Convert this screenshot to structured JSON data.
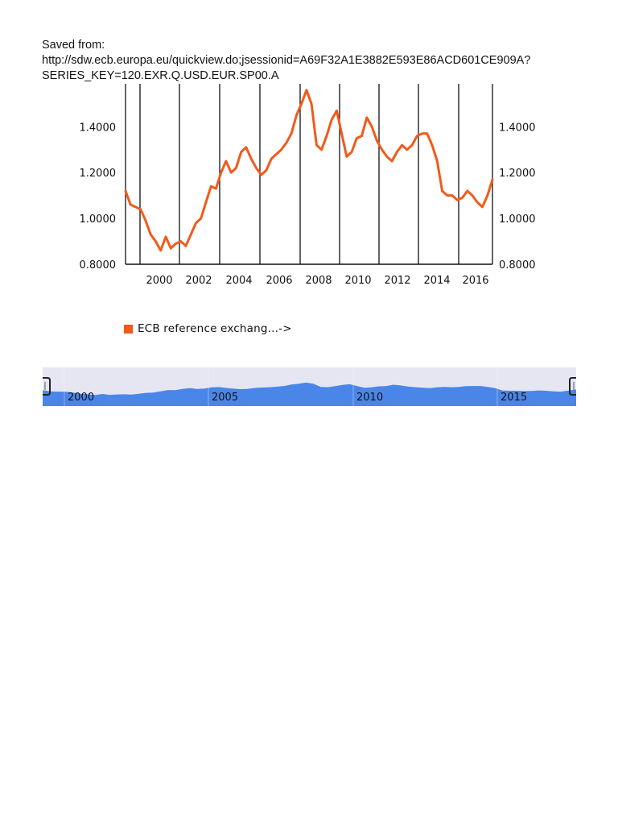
{
  "header": {
    "line1": "Saved from:",
    "line2": "http://sdw.ecb.europa.eu/quickview.do;jsessionid=A69F32A1E3882E593E86ACD601CE909A?",
    "line3": "SERIES_KEY=120.EXR.Q.USD.EUR.SP00.A"
  },
  "legend": {
    "label": "ECB reference exchang...->",
    "color": "#f25a1a"
  },
  "navigator": {
    "labels": [
      "2000",
      "2005",
      "2010",
      "2015"
    ],
    "fill_color": "#4a86e8",
    "background_color": "#e6e6f3"
  },
  "chart_data": {
    "type": "line",
    "title": "",
    "xlabel": "",
    "ylabel": "",
    "ylim": [
      0.8,
      1.58
    ],
    "yticks": [
      "0.8000",
      "1.0000",
      "1.2000",
      "1.4000"
    ],
    "yticks_right": [
      "0.8000",
      "1.0000",
      "1.2000",
      "1.4000"
    ],
    "xticks": [
      "2000",
      "2002",
      "2004",
      "2006",
      "2008",
      "2010",
      "2012",
      "2014",
      "2016"
    ],
    "grid": "vertical lines at year boundaries",
    "legend_position": "bottom",
    "series": [
      {
        "name": "ECB reference exchang...->",
        "color": "#f25a1a",
        "x": [
          "1999Q1",
          "1999Q2",
          "1999Q3",
          "1999Q4",
          "2000Q1",
          "2000Q2",
          "2000Q3",
          "2000Q4",
          "2001Q1",
          "2001Q2",
          "2001Q3",
          "2001Q4",
          "2002Q1",
          "2002Q2",
          "2002Q3",
          "2002Q4",
          "2003Q1",
          "2003Q2",
          "2003Q3",
          "2003Q4",
          "2004Q1",
          "2004Q2",
          "2004Q3",
          "2004Q4",
          "2005Q1",
          "2005Q2",
          "2005Q3",
          "2005Q4",
          "2006Q1",
          "2006Q2",
          "2006Q3",
          "2006Q4",
          "2007Q1",
          "2007Q2",
          "2007Q3",
          "2007Q4",
          "2008Q1",
          "2008Q2",
          "2008Q3",
          "2008Q4",
          "2009Q1",
          "2009Q2",
          "2009Q3",
          "2009Q4",
          "2010Q1",
          "2010Q2",
          "2010Q3",
          "2010Q4",
          "2011Q1",
          "2011Q2",
          "2011Q3",
          "2011Q4",
          "2012Q1",
          "2012Q2",
          "2012Q3",
          "2012Q4",
          "2013Q1",
          "2013Q2",
          "2013Q3",
          "2013Q4",
          "2014Q1",
          "2014Q2",
          "2014Q3",
          "2014Q4",
          "2015Q1",
          "2015Q2",
          "2015Q3",
          "2015Q4",
          "2016Q1",
          "2016Q2",
          "2016Q3",
          "2016Q4",
          "2017Q1",
          "2017Q2"
        ],
        "values": [
          1.12,
          1.06,
          1.05,
          1.04,
          0.99,
          0.93,
          0.9,
          0.86,
          0.92,
          0.87,
          0.89,
          0.9,
          0.88,
          0.93,
          0.98,
          1.0,
          1.07,
          1.14,
          1.13,
          1.2,
          1.25,
          1.2,
          1.22,
          1.29,
          1.31,
          1.26,
          1.22,
          1.19,
          1.21,
          1.26,
          1.28,
          1.3,
          1.33,
          1.37,
          1.45,
          1.5,
          1.56,
          1.5,
          1.32,
          1.3,
          1.36,
          1.43,
          1.47,
          1.37,
          1.27,
          1.29,
          1.35,
          1.36,
          1.44,
          1.4,
          1.34,
          1.3,
          1.27,
          1.25,
          1.29,
          1.32,
          1.3,
          1.32,
          1.36,
          1.37,
          1.37,
          1.32,
          1.25,
          1.12,
          1.1,
          1.1,
          1.08,
          1.09,
          1.12,
          1.1,
          1.07,
          1.05,
          1.1,
          1.17
        ]
      }
    ]
  }
}
